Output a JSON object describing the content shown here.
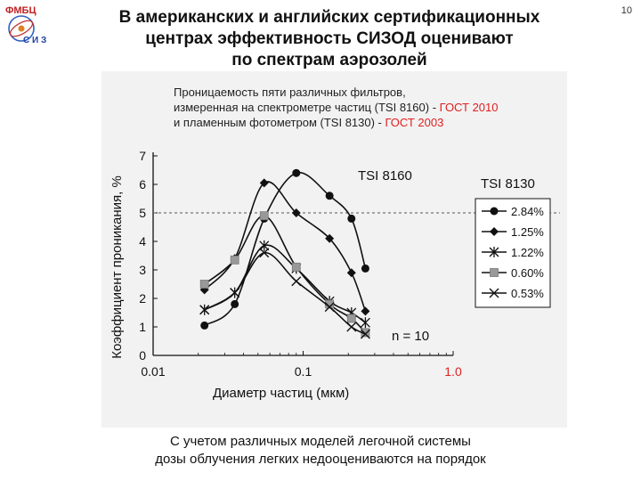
{
  "logo": {
    "top_text": "ФМБЦ",
    "bottom_text": "С И З"
  },
  "title": {
    "line1": "В американских и английских сертификационных",
    "line2": "центрах эффективность СИЗОД оценивают",
    "line3": "по спектрам аэрозолей"
  },
  "page_number": "10",
  "caption": {
    "line1": "С учетом различных моделей легочной системы",
    "line2": "дозы облучения легких недооцениваются на порядок"
  },
  "colors": {
    "accent_red": "#e02020",
    "series": "#111111",
    "gray_marker": "#999999"
  },
  "chart_data": {
    "type": "line",
    "annotation": {
      "line1": "Проницаемость пяти различных фильтров,",
      "line2_black": "измеренная на спектрометре частиц (TSI 8160) - ",
      "line2_red": "ГОСТ 2010",
      "line3_black": "и пламенным фотометром (TSI 8130) - ",
      "line3_red": "ГОСТ 2003"
    },
    "label_tsi8160": "TSI 8160",
    "label_tsi8130": "TSI 8130",
    "label_n": "n = 10",
    "xlabel": "Диаметр частиц (мкм)",
    "ylabel": "Коэффициент проникания, %",
    "x_scale": "log",
    "xlim": [
      0.01,
      1.0
    ],
    "ylim": [
      0,
      7
    ],
    "x_ticks": [
      {
        "value": 0.01,
        "label": "0.01",
        "red": false
      },
      {
        "value": 0.1,
        "label": "0.1",
        "red": false
      },
      {
        "value": 1.0,
        "label": "1.0",
        "red": true
      }
    ],
    "y_ticks": [
      {
        "value": 0,
        "label": "0"
      },
      {
        "value": 1,
        "label": "1"
      },
      {
        "value": 2,
        "label": "2"
      },
      {
        "value": 3,
        "label": "3"
      },
      {
        "value": 4,
        "label": "4"
      },
      {
        "value": 5,
        "label": "5"
      },
      {
        "value": 6,
        "label": "6"
      },
      {
        "value": 7,
        "label": "7"
      }
    ],
    "reference_line_y": 5,
    "grid": false,
    "legend_position": "right",
    "series": [
      {
        "name": "2.84%",
        "marker": "circle",
        "x": [
          0.022,
          0.035,
          0.055,
          0.09,
          0.15,
          0.21,
          0.26
        ],
        "y": [
          1.05,
          1.8,
          4.8,
          6.4,
          5.6,
          4.8,
          3.05
        ]
      },
      {
        "name": "1.25%",
        "marker": "diamond",
        "x": [
          0.022,
          0.035,
          0.055,
          0.09,
          0.15,
          0.21,
          0.26
        ],
        "y": [
          2.3,
          3.4,
          6.05,
          5.0,
          4.1,
          2.9,
          1.55
        ]
      },
      {
        "name": "1.22%",
        "marker": "asterisk",
        "x": [
          0.022,
          0.035,
          0.055,
          0.09,
          0.15,
          0.21,
          0.26
        ],
        "y": [
          1.6,
          2.2,
          3.85,
          3.05,
          1.9,
          1.5,
          1.15
        ]
      },
      {
        "name": "0.60%",
        "marker": "square",
        "x": [
          0.022,
          0.035,
          0.055,
          0.09,
          0.15,
          0.21,
          0.26
        ],
        "y": [
          2.5,
          3.35,
          4.9,
          3.1,
          1.8,
          1.3,
          0.8
        ]
      },
      {
        "name": "0.53%",
        "marker": "x",
        "x": [
          0.022,
          0.035,
          0.055,
          0.09,
          0.15,
          0.21,
          0.26
        ],
        "y": [
          1.6,
          2.2,
          3.6,
          2.6,
          1.7,
          1.0,
          0.75
        ]
      }
    ]
  }
}
